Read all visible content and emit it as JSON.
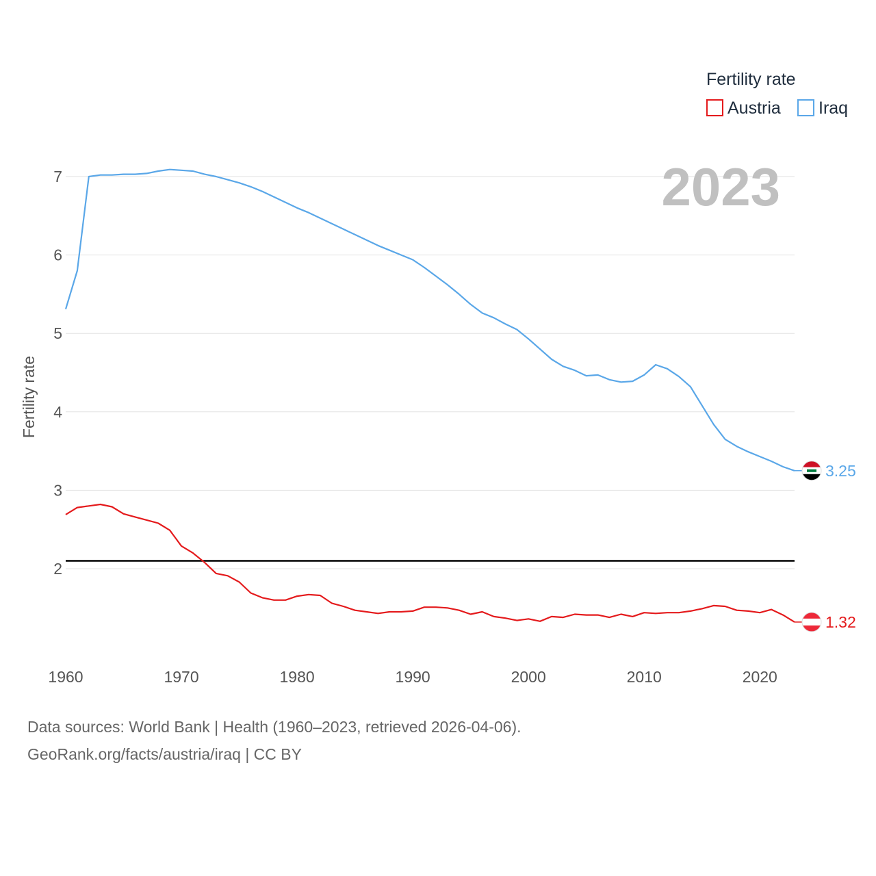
{
  "chart_data": {
    "type": "line",
    "title": "",
    "year_label": "2023",
    "ylabel": "Fertility rate",
    "xlabel": "",
    "legend_title": "Fertility rate",
    "legend_position": "top-right",
    "xlim": [
      1960,
      2023
    ],
    "ylim": [
      0.8,
      7.5
    ],
    "x_ticks": [
      "1960",
      "1970",
      "1980",
      "1990",
      "2000",
      "2010",
      "2020"
    ],
    "y_ticks": [
      "2",
      "3",
      "4",
      "5",
      "6",
      "7"
    ],
    "reference_line": {
      "value": 2.1,
      "color": "#000000"
    },
    "x": [
      1960,
      1961,
      1962,
      1963,
      1964,
      1965,
      1966,
      1967,
      1968,
      1969,
      1970,
      1971,
      1972,
      1973,
      1974,
      1975,
      1976,
      1977,
      1978,
      1979,
      1980,
      1981,
      1982,
      1983,
      1984,
      1985,
      1986,
      1987,
      1988,
      1989,
      1990,
      1991,
      1992,
      1993,
      1994,
      1995,
      1996,
      1997,
      1998,
      1999,
      2000,
      2001,
      2002,
      2003,
      2004,
      2005,
      2006,
      2007,
      2008,
      2009,
      2010,
      2011,
      2012,
      2013,
      2014,
      2015,
      2016,
      2017,
      2018,
      2019,
      2020,
      2021,
      2022,
      2023
    ],
    "series": [
      {
        "name": "Austria",
        "color": "#e41a1c",
        "end_label": "1.32",
        "values": [
          2.69,
          2.78,
          2.8,
          2.82,
          2.79,
          2.7,
          2.66,
          2.62,
          2.58,
          2.49,
          2.29,
          2.2,
          2.08,
          1.94,
          1.91,
          1.83,
          1.69,
          1.63,
          1.6,
          1.6,
          1.65,
          1.67,
          1.66,
          1.56,
          1.52,
          1.47,
          1.45,
          1.43,
          1.45,
          1.45,
          1.46,
          1.51,
          1.51,
          1.5,
          1.47,
          1.42,
          1.45,
          1.39,
          1.37,
          1.34,
          1.36,
          1.33,
          1.39,
          1.38,
          1.42,
          1.41,
          1.41,
          1.38,
          1.42,
          1.39,
          1.44,
          1.43,
          1.44,
          1.44,
          1.46,
          1.49,
          1.53,
          1.52,
          1.47,
          1.46,
          1.44,
          1.48,
          1.41,
          1.32
        ]
      },
      {
        "name": "Iraq",
        "color": "#5aa7e8",
        "end_label": "3.25",
        "values": [
          5.31,
          5.8,
          7.0,
          7.02,
          7.02,
          7.03,
          7.03,
          7.04,
          7.07,
          7.09,
          7.08,
          7.07,
          7.03,
          7.0,
          6.96,
          6.92,
          6.87,
          6.81,
          6.74,
          6.67,
          6.6,
          6.54,
          6.47,
          6.4,
          6.33,
          6.26,
          6.19,
          6.12,
          6.06,
          6.0,
          5.94,
          5.84,
          5.73,
          5.62,
          5.5,
          5.37,
          5.26,
          5.2,
          5.12,
          5.05,
          4.93,
          4.8,
          4.67,
          4.58,
          4.53,
          4.46,
          4.47,
          4.41,
          4.38,
          4.39,
          4.47,
          4.6,
          4.55,
          4.45,
          4.32,
          4.08,
          3.84,
          3.65,
          3.56,
          3.49,
          3.43,
          3.37,
          3.3,
          3.25
        ]
      }
    ],
    "source_text": "Data sources: World Bank | Health (1960–2023, retrieved 2026-04-06).",
    "credit_text": "GeoRank.org/facts/austria/iraq | CC BY"
  }
}
